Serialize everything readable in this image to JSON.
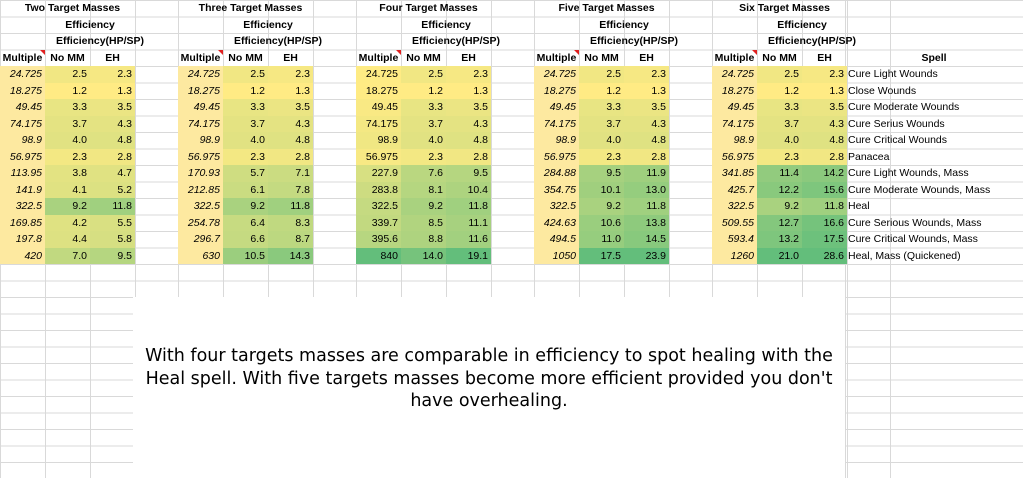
{
  "groups": [
    {
      "title": "Two Target Masses",
      "sub": "Efficiency",
      "eff_label": "Efficiency(HP/SP)"
    },
    {
      "title": "Three Target Masses",
      "sub": "Efficiency",
      "eff_label": "Efficiency(HP/SP)"
    },
    {
      "title": "Four Target Masses",
      "sub": "Efficiency",
      "eff_label": "Efficiency(HP/SP)"
    },
    {
      "title": "Five Target Masses",
      "sub": "Efficiency",
      "eff_label": "Efficiency(HP/SP)"
    },
    {
      "title": "Six Target Masses",
      "sub": "Efficiency",
      "eff_label": "Efficiency(HP/SP)"
    }
  ],
  "col_headers": {
    "multiple": "Multiple",
    "nomm": "No MM",
    "eh": "EH",
    "spell": "Spell"
  },
  "spells": [
    "Cure Light Wounds",
    "Close Wounds",
    "Cure Moderate Wounds",
    "Cure Serius Wounds",
    "Cure Critical Wounds",
    "Panacea",
    "Cure Light Wounds, Mass",
    "Cure Moderate Wounds, Mass",
    "Heal",
    "Cure Serious Wounds, Mass",
    "Cure Critical Wounds, Mass",
    "Heal, Mass (Quickened)"
  ],
  "tables": [
    {
      "multiple": [
        "24.725",
        "18.275",
        "49.45",
        "74.175",
        "98.9",
        "56.975",
        "113.95",
        "141.9",
        "322.5",
        "169.85",
        "197.8",
        "420"
      ],
      "nomm": [
        "2.5",
        "1.2",
        "3.3",
        "3.7",
        "4.0",
        "2.3",
        "3.8",
        "4.1",
        "9.2",
        "4.2",
        "4.4",
        "7.0"
      ],
      "eh": [
        "2.3",
        "1.3",
        "3.5",
        "4.3",
        "4.8",
        "2.8",
        "4.7",
        "5.2",
        "11.8",
        "5.5",
        "5.8",
        "9.5"
      ]
    },
    {
      "multiple": [
        "24.725",
        "18.275",
        "49.45",
        "74.175",
        "98.9",
        "56.975",
        "170.93",
        "212.85",
        "322.5",
        "254.78",
        "296.7",
        "630"
      ],
      "nomm": [
        "2.5",
        "1.2",
        "3.3",
        "3.7",
        "4.0",
        "2.3",
        "5.7",
        "6.1",
        "9.2",
        "6.4",
        "6.6",
        "10.5"
      ],
      "eh": [
        "2.3",
        "1.3",
        "3.5",
        "4.3",
        "4.8",
        "2.8",
        "7.1",
        "7.8",
        "11.8",
        "8.3",
        "8.7",
        "14.3"
      ]
    },
    {
      "multiple": [
        "24.725",
        "18.275",
        "49.45",
        "74.175",
        "98.9",
        "56.975",
        "227.9",
        "283.8",
        "322.5",
        "339.7",
        "395.6",
        "840"
      ],
      "nomm": [
        "2.5",
        "1.2",
        "3.3",
        "3.7",
        "4.0",
        "2.3",
        "7.6",
        "8.1",
        "9.2",
        "8.5",
        "8.8",
        "14.0"
      ],
      "eh": [
        "2.3",
        "1.3",
        "3.5",
        "4.3",
        "4.8",
        "2.8",
        "9.5",
        "10.4",
        "11.8",
        "11.1",
        "11.6",
        "19.1"
      ]
    },
    {
      "multiple": [
        "24.725",
        "18.275",
        "49.45",
        "74.175",
        "98.9",
        "56.975",
        "284.88",
        "354.75",
        "322.5",
        "424.63",
        "494.5",
        "1050"
      ],
      "nomm": [
        "2.5",
        "1.2",
        "3.3",
        "3.7",
        "4.0",
        "2.3",
        "9.5",
        "10.1",
        "9.2",
        "10.6",
        "11.0",
        "17.5"
      ],
      "eh": [
        "2.3",
        "1.3",
        "3.5",
        "4.3",
        "4.8",
        "2.8",
        "11.9",
        "13.0",
        "11.8",
        "13.8",
        "14.5",
        "23.9"
      ]
    },
    {
      "multiple": [
        "24.725",
        "18.275",
        "49.45",
        "74.175",
        "98.9",
        "56.975",
        "341.85",
        "425.7",
        "322.5",
        "509.55",
        "593.4",
        "1260"
      ],
      "nomm": [
        "2.5",
        "1.2",
        "3.3",
        "3.7",
        "4.0",
        "2.3",
        "11.4",
        "12.2",
        "9.2",
        "12.7",
        "13.2",
        "21.0"
      ],
      "eh": [
        "2.3",
        "1.3",
        "3.5",
        "4.3",
        "4.8",
        "2.8",
        "14.2",
        "15.6",
        "11.8",
        "16.6",
        "17.5",
        "28.6"
      ]
    }
  ],
  "note": {
    "line1": "With four targets masses are comparable in efficiency to spot healing with the",
    "line2": "Heal spell.  With five targets masses become more efficient provided you don't",
    "line3": "have overhealing."
  }
}
